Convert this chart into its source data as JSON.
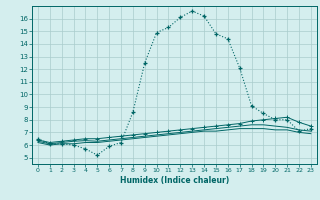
{
  "xlabel": "Humidex (Indice chaleur)",
  "ylabel": "",
  "background_color": "#d4eeee",
  "grid_color": "#aacccc",
  "line_color": "#006666",
  "xlim": [
    -0.5,
    23.5
  ],
  "ylim": [
    4.5,
    17.0
  ],
  "yticks": [
    5,
    6,
    7,
    8,
    9,
    10,
    11,
    12,
    13,
    14,
    15,
    16
  ],
  "xticks": [
    0,
    1,
    2,
    3,
    4,
    5,
    6,
    7,
    8,
    9,
    10,
    11,
    12,
    13,
    14,
    15,
    16,
    17,
    18,
    19,
    20,
    21,
    22,
    23
  ],
  "line1_x": [
    0,
    1,
    2,
    3,
    4,
    5,
    6,
    7,
    8,
    9,
    10,
    11,
    12,
    13,
    14,
    15,
    16,
    17,
    18,
    19,
    20,
    21,
    22,
    23
  ],
  "line1_y": [
    6.5,
    6.1,
    6.1,
    6.0,
    5.7,
    5.2,
    5.9,
    6.2,
    8.6,
    12.5,
    14.9,
    15.3,
    16.1,
    16.6,
    16.2,
    14.8,
    14.4,
    12.1,
    9.1,
    8.5,
    8.0,
    8.0,
    7.1,
    7.3
  ],
  "line2_x": [
    0,
    1,
    2,
    3,
    4,
    5,
    6,
    7,
    8,
    9,
    10,
    11,
    12,
    13,
    14,
    15,
    16,
    17,
    18,
    19,
    20,
    21,
    22,
    23
  ],
  "line2_y": [
    6.4,
    6.2,
    6.3,
    6.4,
    6.5,
    6.5,
    6.6,
    6.7,
    6.8,
    6.9,
    7.0,
    7.1,
    7.2,
    7.3,
    7.4,
    7.5,
    7.6,
    7.7,
    7.9,
    8.0,
    8.1,
    8.2,
    7.8,
    7.5
  ],
  "line3_x": [
    0,
    1,
    2,
    3,
    4,
    5,
    6,
    7,
    8,
    9,
    10,
    11,
    12,
    13,
    14,
    15,
    16,
    17,
    18,
    19,
    20,
    21,
    22,
    23
  ],
  "line3_y": [
    6.3,
    6.1,
    6.2,
    6.3,
    6.35,
    6.3,
    6.4,
    6.5,
    6.6,
    6.7,
    6.8,
    6.9,
    7.0,
    7.1,
    7.2,
    7.3,
    7.4,
    7.5,
    7.6,
    7.6,
    7.5,
    7.4,
    7.2,
    7.1
  ],
  "line4_x": [
    0,
    1,
    2,
    3,
    4,
    5,
    6,
    7,
    8,
    9,
    10,
    11,
    12,
    13,
    14,
    15,
    16,
    17,
    18,
    19,
    20,
    21,
    22,
    23
  ],
  "line4_y": [
    6.2,
    6.0,
    6.1,
    6.1,
    6.2,
    6.2,
    6.3,
    6.4,
    6.5,
    6.6,
    6.7,
    6.8,
    6.9,
    7.0,
    7.1,
    7.1,
    7.2,
    7.3,
    7.3,
    7.3,
    7.2,
    7.2,
    7.0,
    6.9
  ]
}
